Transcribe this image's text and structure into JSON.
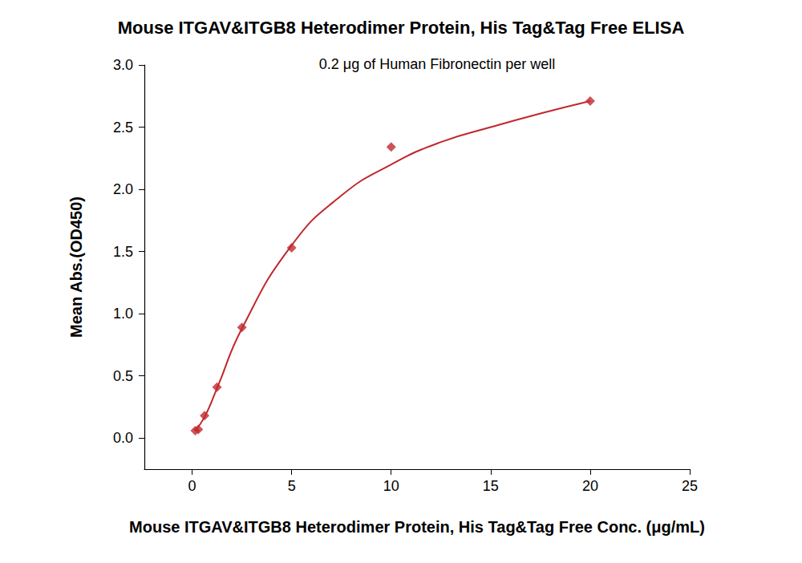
{
  "chart_data": {
    "type": "scatter",
    "title": "Mouse ITGAV&ITGB8 Heterodimer Protein, His Tag&Tag Free ELISA",
    "subtitle": "0.2 μg of Human Fibronectin per well",
    "x_label": "Mouse ITGAV&ITGB8 Heterodimer Protein, His Tag&Tag Free Conc. (μg/mL)",
    "y_label": "Mean Abs.(OD450)",
    "series": [
      {
        "type": "scatter",
        "marker": "diamond",
        "color": "#c0282d",
        "x": [
          0.156,
          0.3125,
          0.625,
          1.25,
          2.5,
          5,
          10,
          20
        ],
        "values": [
          0.06,
          0.07,
          0.18,
          0.41,
          0.89,
          1.53,
          2.34,
          2.71
        ]
      },
      {
        "type": "line",
        "line_style": "solid",
        "color": "#c0282d",
        "x": [
          0.156,
          0.625,
          1.25,
          2.5,
          5,
          7.5,
          10,
          12.5,
          15,
          17.5,
          20
        ],
        "values": [
          0.06,
          0.17,
          0.4,
          0.88,
          1.55,
          1.95,
          2.2,
          2.38,
          2.5,
          2.61,
          2.71
        ]
      }
    ],
    "xlim": [
      -2.4,
      25
    ],
    "xticks": [
      0,
      5,
      10,
      15,
      20,
      25
    ],
    "ylim": [
      -0.25,
      3.0
    ],
    "yticks": [
      {
        "value": 0,
        "label": "0.0"
      },
      0.5,
      {
        "value": 1,
        "label": "1.0"
      },
      1.5,
      {
        "value": 2,
        "label": "2.0"
      },
      2.5,
      {
        "value": 3,
        "label": "3.0"
      }
    ],
    "grid": false
  }
}
